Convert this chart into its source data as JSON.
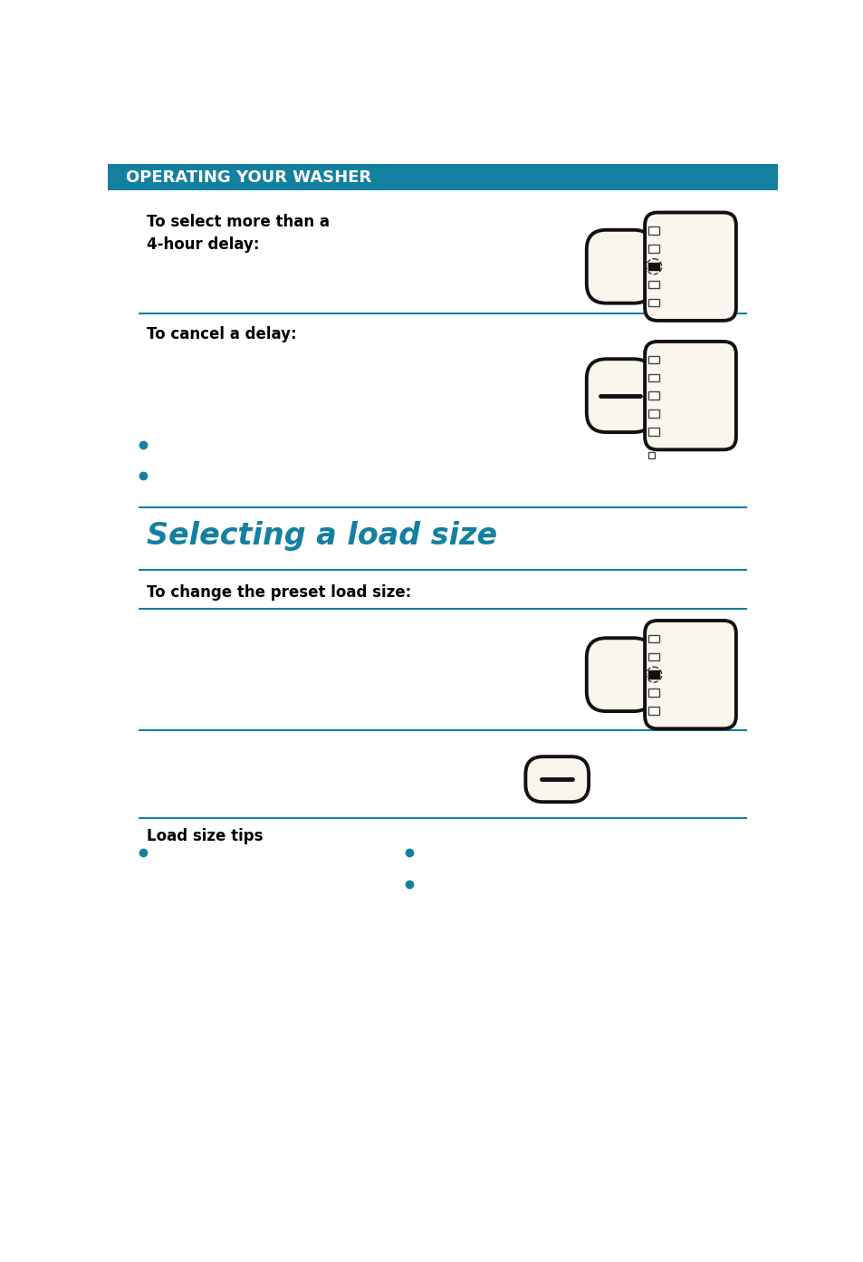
{
  "header_text": "OPERATING YOUR WASHER",
  "header_bg": "#1480a0",
  "header_text_color": "#ffffff",
  "page_bg": "#ffffff",
  "blue_line_color": "#1480a0",
  "section1_label": "To select more than a\n4-hour delay:",
  "section2_label": "To cancel a delay:",
  "section3_title": "Selecting a load size",
  "section3_title_color": "#1480a0",
  "section4_label": "To change the preset load size:",
  "section5_label": "Load size tips",
  "body_text_color": "#000000",
  "cream_color": "#faf5ed",
  "device_border_color": "#111111",
  "label_fontsize": 12,
  "title_fontsize": 24,
  "header_fontsize": 13
}
